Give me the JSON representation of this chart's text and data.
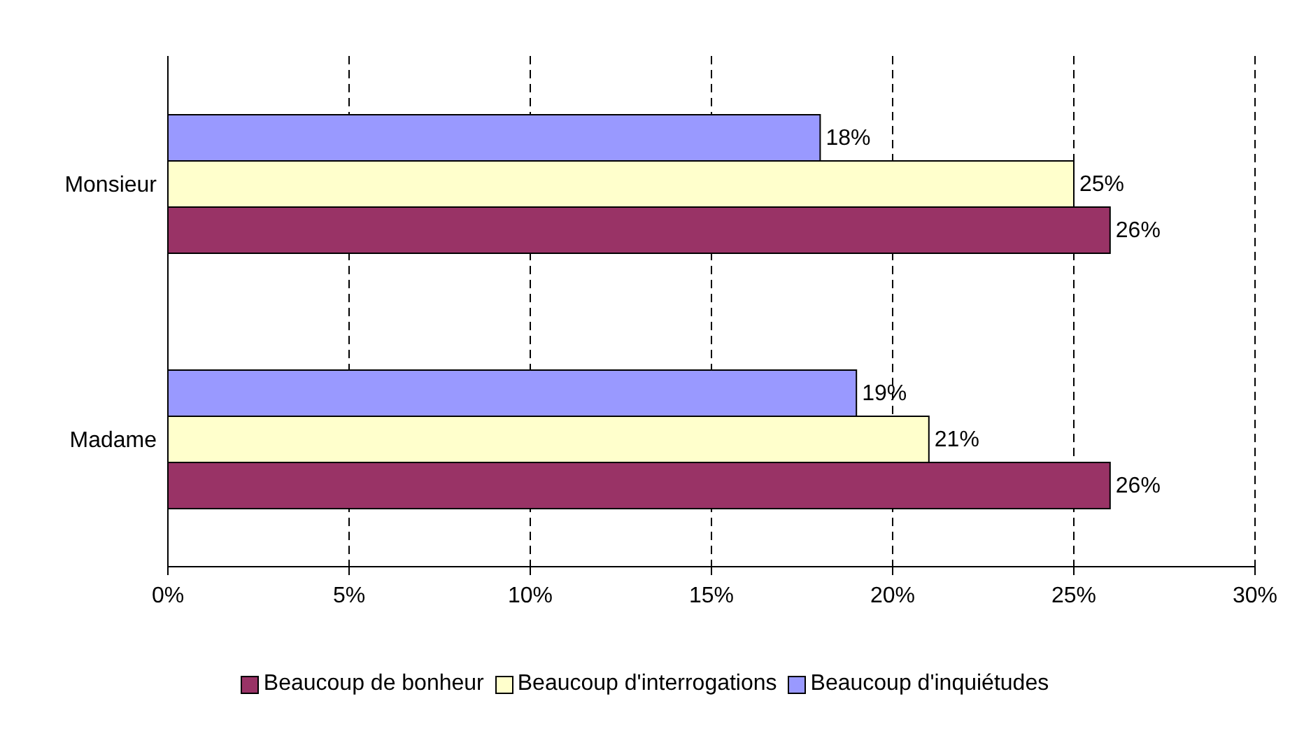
{
  "chart_data": {
    "type": "bar",
    "orientation": "horizontal",
    "categories": [
      "Monsieur",
      "Madame"
    ],
    "series": [
      {
        "name": "Beaucoup de bonheur",
        "color": "#993366",
        "values": [
          26,
          26
        ],
        "value_labels": [
          "26%",
          "26%"
        ]
      },
      {
        "name": "Beaucoup d'interrogations",
        "color": "#ffffcc",
        "values": [
          25,
          21
        ],
        "value_labels": [
          "25%",
          "21%"
        ]
      },
      {
        "name": "Beaucoup d'inquiétudes",
        "color": "#9999ff",
        "values": [
          18,
          19
        ],
        "value_labels": [
          "18%",
          "19%"
        ]
      }
    ],
    "xlim": [
      0,
      30
    ],
    "xticks": [
      {
        "value": 0,
        "label": "0%"
      },
      {
        "value": 5,
        "label": "5%"
      },
      {
        "value": 10,
        "label": "10%"
      },
      {
        "value": 15,
        "label": "15%"
      },
      {
        "value": 20,
        "label": "20%"
      },
      {
        "value": 25,
        "label": "25%"
      },
      {
        "value": 30,
        "label": "30%"
      }
    ],
    "grid": "x",
    "legend": "bottom"
  }
}
